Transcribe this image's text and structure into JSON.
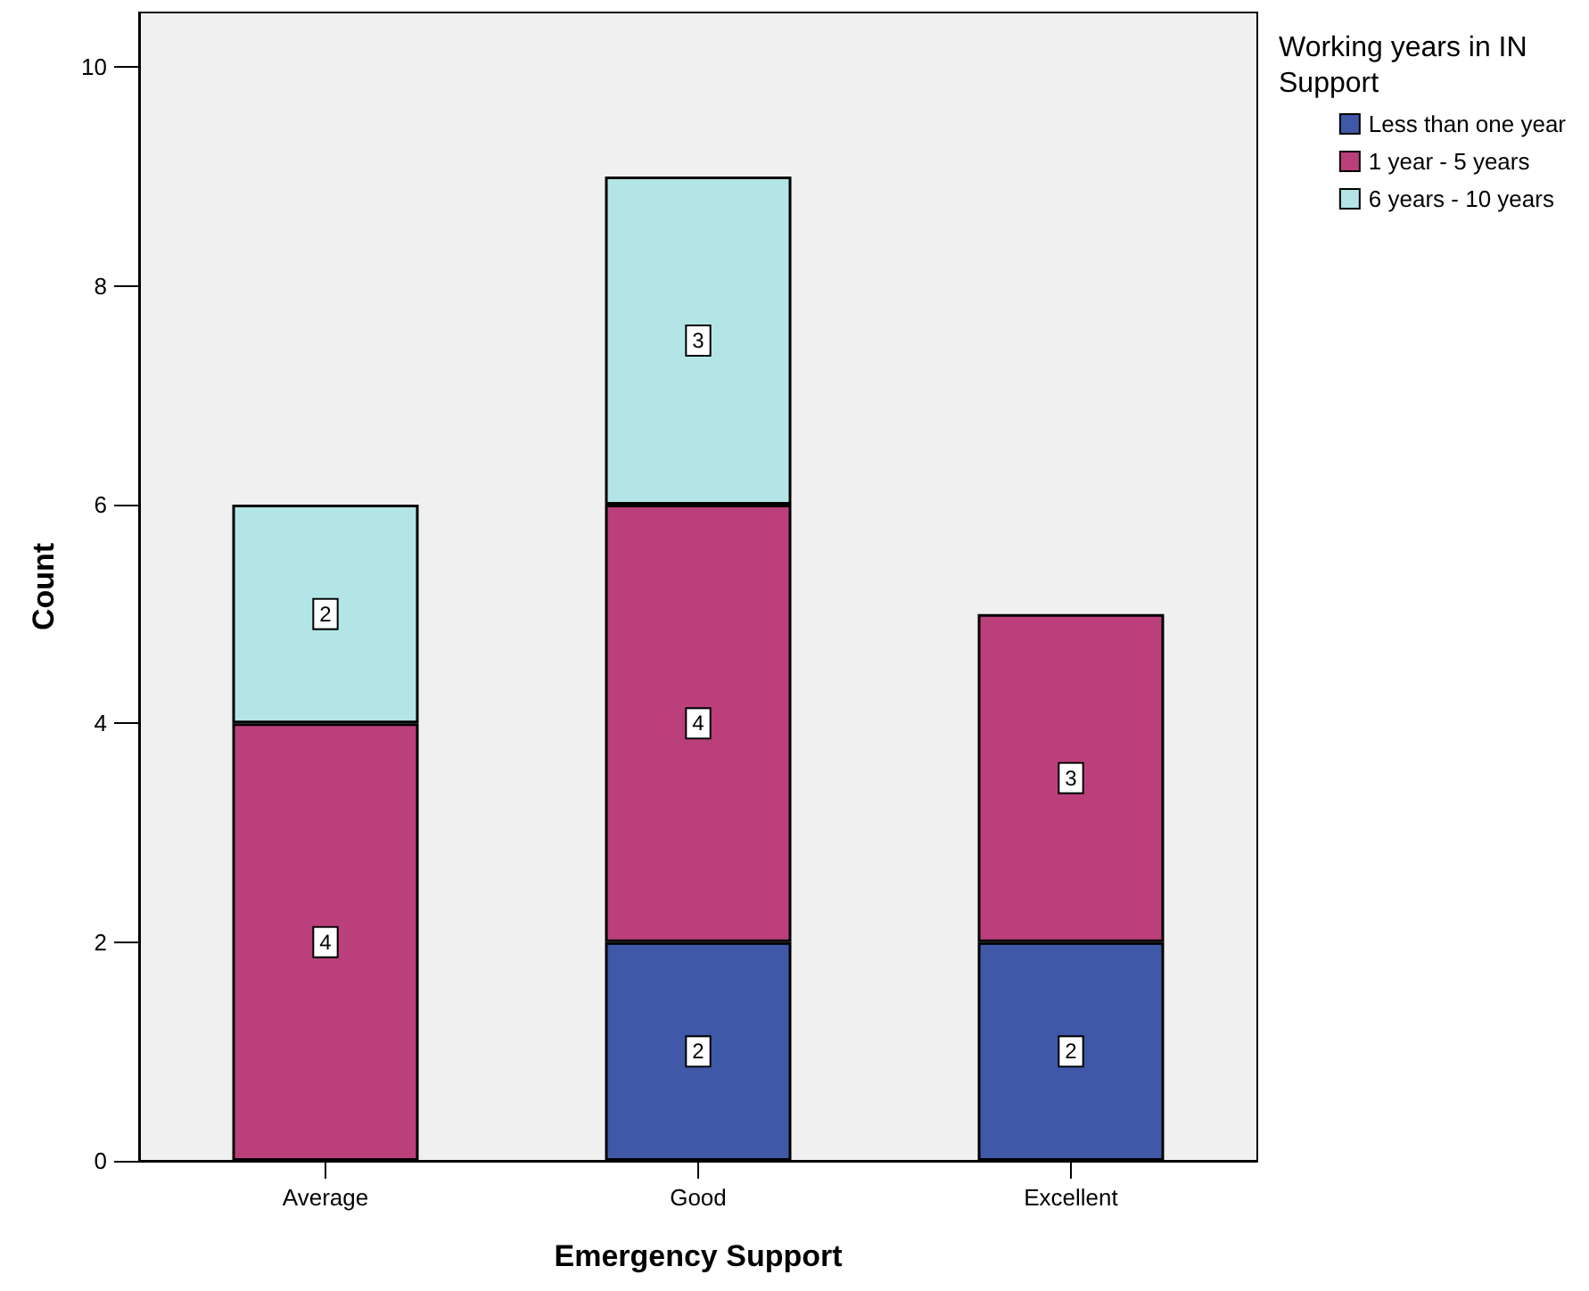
{
  "chart_data": {
    "type": "bar",
    "stacked": true,
    "xlabel": "Emergency Support",
    "ylabel": "Count",
    "legend_title": "Working years in IN Support",
    "categories": [
      "Average",
      "Good",
      "Excellent"
    ],
    "series": [
      {
        "name": "Less than one year",
        "color": "#3f58a8",
        "values": [
          null,
          2,
          2
        ]
      },
      {
        "name": "1 year - 5 years",
        "color": "#bb3f7b",
        "values": [
          4,
          4,
          3
        ]
      },
      {
        "name": "6 years - 10 years",
        "color": "#b3e5e6",
        "values": [
          2,
          3,
          null
        ]
      }
    ],
    "ylim": [
      0,
      10.5
    ],
    "yticks": [
      0,
      2,
      4,
      6,
      8,
      10
    ],
    "grid": false,
    "legend": "top right",
    "data_labels": true
  }
}
